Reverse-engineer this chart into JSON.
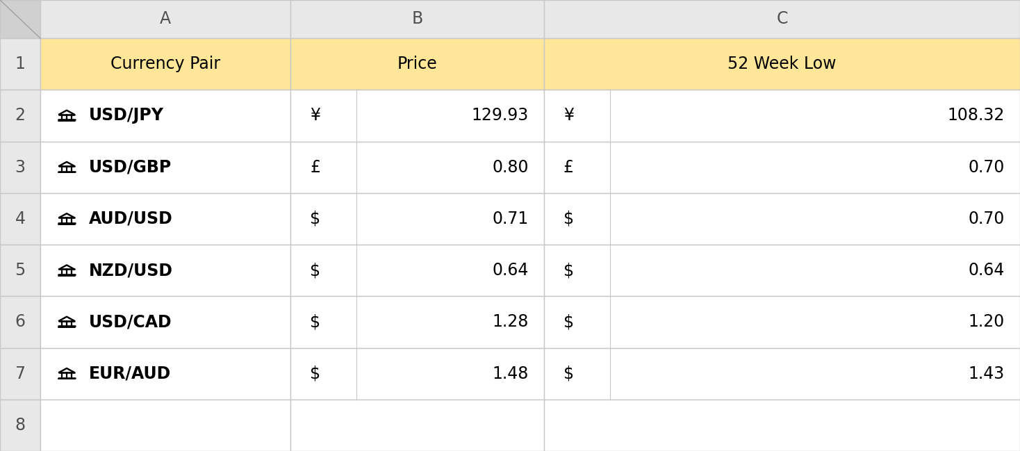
{
  "header_bg": "#FFE699",
  "row_bg_white": "#FFFFFF",
  "grid_color": "#C8C8C8",
  "row_header_bg": "#E8E8E8",
  "col_header_bg": "#E8E8E8",
  "corner_bg": "#D0D0D0",
  "text_color": "#000000",
  "fig_bg": "#FFFFFF",
  "col_headers": [
    "A",
    "B",
    "C"
  ],
  "row_headers": [
    "1",
    "2",
    "3",
    "4",
    "5",
    "6",
    "7",
    "8"
  ],
  "header_row": [
    "Currency Pair",
    "Price",
    "52 Week Low"
  ],
  "rows": [
    [
      "USD/JPY",
      "¥",
      "129.93",
      "¥",
      "108.32"
    ],
    [
      "USD/GBP",
      "£",
      "0.80",
      "£",
      "0.70"
    ],
    [
      "AUD/USD",
      "$",
      "0.71",
      "$",
      "0.70"
    ],
    [
      "NZD/USD",
      "$",
      "0.64",
      "$",
      "0.64"
    ],
    [
      "USD/CAD",
      "$",
      "1.28",
      "$",
      "1.20"
    ],
    [
      "EUR/AUD",
      "$",
      "1.48",
      "$",
      "1.43"
    ]
  ],
  "font_size_header": 17,
  "font_size_data": 17,
  "font_size_col_header": 17,
  "font_size_row_header": 17,
  "font_size_icon": 16
}
